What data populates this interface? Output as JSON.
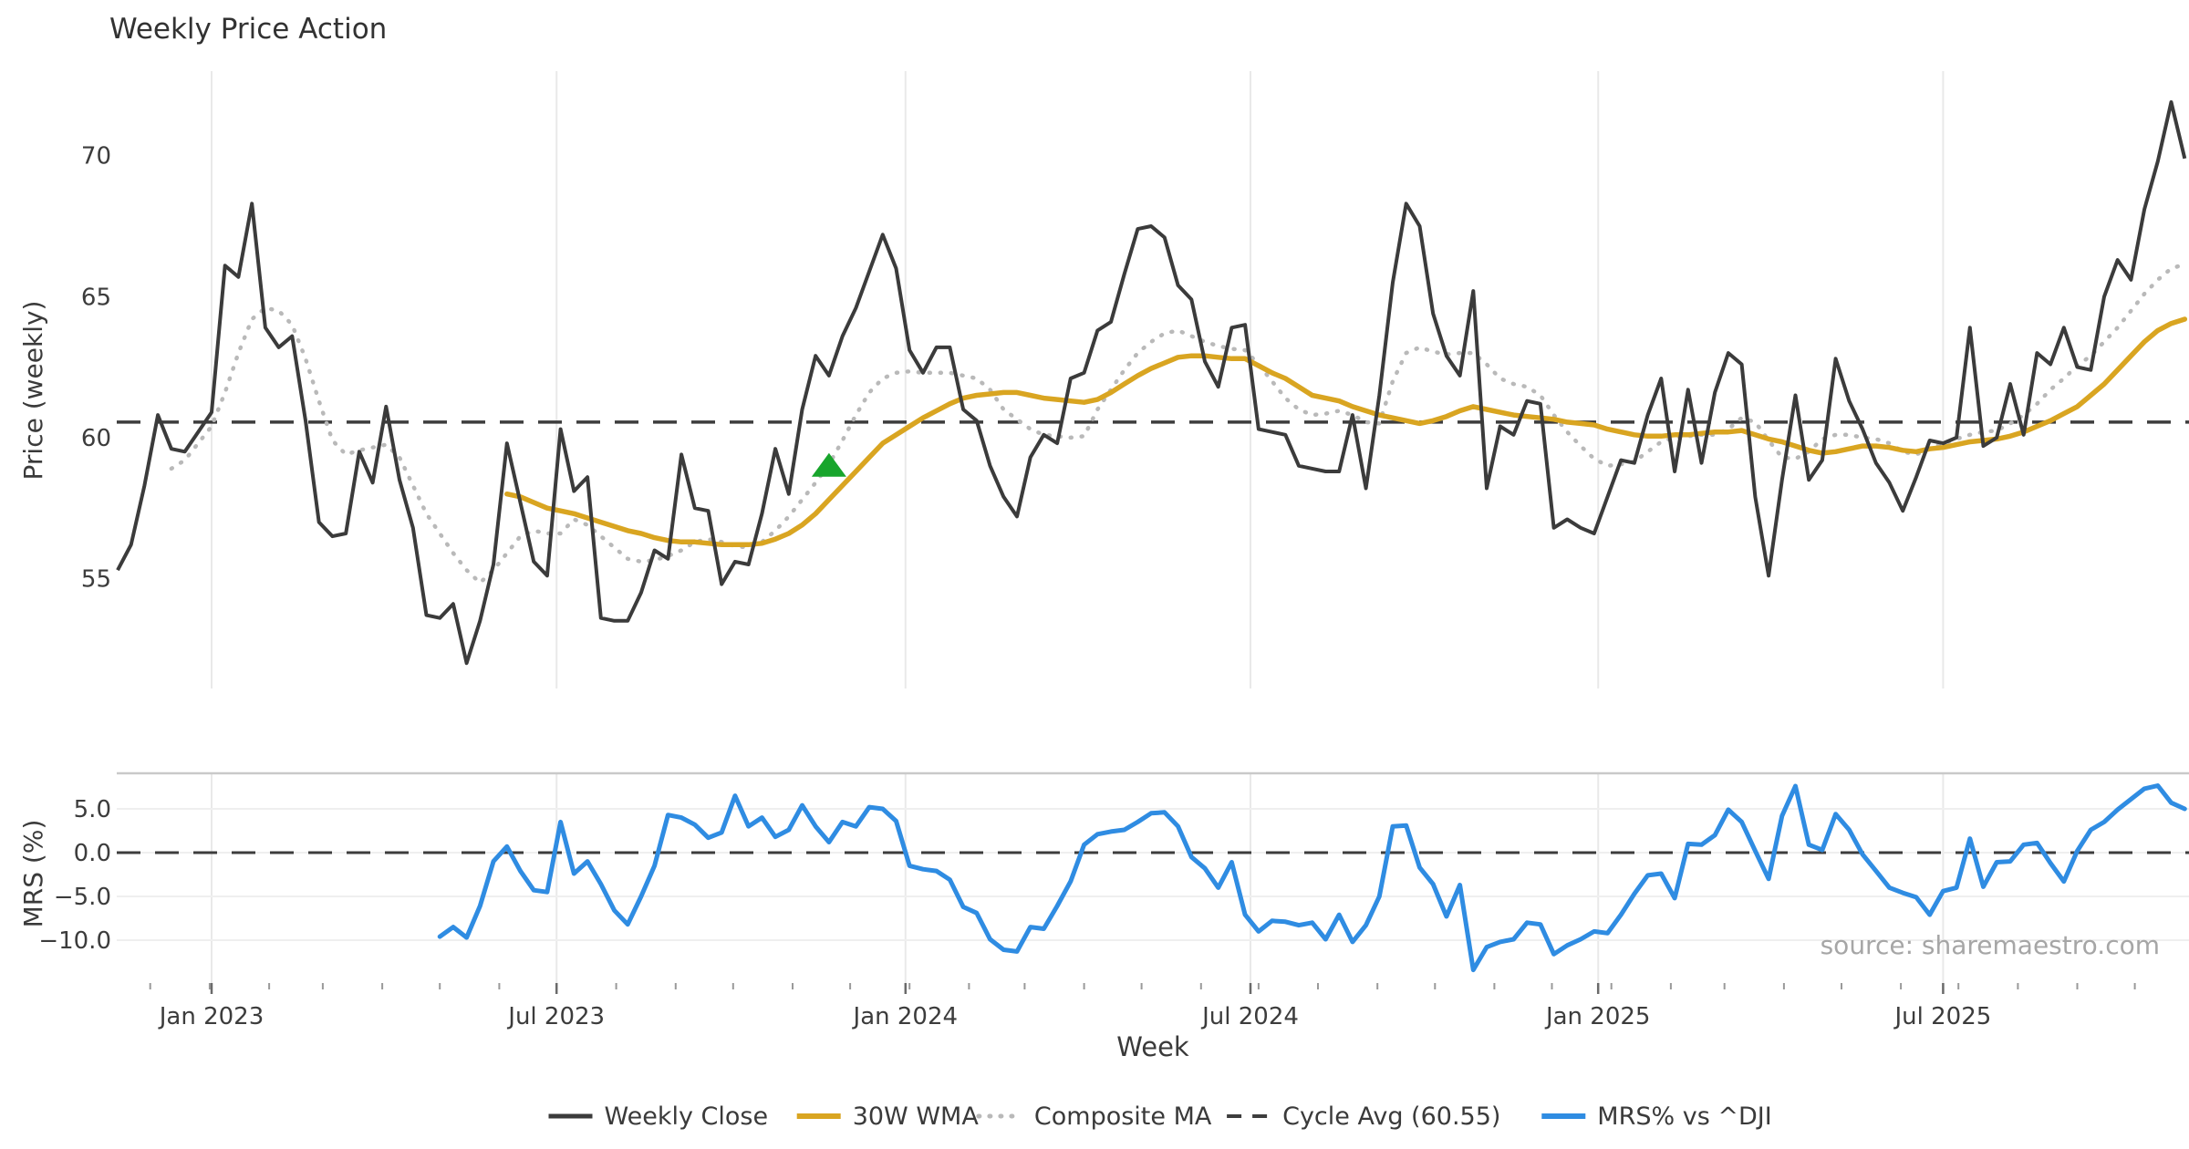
{
  "title": "Weekly Price Action",
  "source_note": "source: sharemaestro.com",
  "axes": {
    "top": {
      "ylabel": "Price (weekly)",
      "yticks": [
        "70",
        "65",
        "60",
        "55"
      ],
      "ytick_values": [
        70,
        65,
        60,
        55
      ],
      "ylim": [
        51.1,
        73.0
      ]
    },
    "bottom": {
      "ylabel": "MRS (%)",
      "yticks": [
        "5.0",
        "0.0",
        "−5.0",
        "−10.0"
      ],
      "ytick_values": [
        5,
        0,
        -5,
        -10
      ],
      "ylim": [
        -14.9,
        9.06
      ]
    },
    "x": {
      "label": "Week",
      "ticks": [
        {
          "label": "Jan 2023",
          "week_index": 7.0
        },
        {
          "label": "Jul 2023",
          "week_index": 32.7
        },
        {
          "label": "Jan 2024",
          "week_index": 58.7
        },
        {
          "label": "Jul 2024",
          "week_index": 84.4
        },
        {
          "label": "Jan 2025",
          "week_index": 110.3
        },
        {
          "label": "Jul 2025",
          "week_index": 136.0
        }
      ]
    }
  },
  "legend": {
    "items": [
      {
        "label": "Weekly Close",
        "style": "solid-dark"
      },
      {
        "label": "30W WMA",
        "style": "solid-gold"
      },
      {
        "label": "Composite MA",
        "style": "dotted-gray"
      },
      {
        "label": "Cycle Avg (60.55)",
        "style": "dashed-dark"
      },
      {
        "label": "MRS% vs ^DJI",
        "style": "solid-blue"
      }
    ]
  },
  "colors": {
    "close": "#3b3b3b",
    "wma": "#d9a521",
    "composite": "#b9b9b9",
    "cycle": "#3d3d3d",
    "mrs": "#2f8ce2",
    "grid": "#e9e9e9",
    "spine": "#c9c9c9",
    "marker": "#18a52c",
    "source": "#a6a6a6"
  },
  "marker": {
    "name": "buy-signal-triangle",
    "week_index": 53,
    "price": 59.0,
    "color": "#18a52c"
  },
  "chart_data": {
    "type": "line",
    "title": "Weekly Price Action",
    "xlabel": "Week",
    "x_start_date": "2022-11-14",
    "x_step_days": 7,
    "n_weeks": 155,
    "cycle_avg": 60.55,
    "panels": [
      {
        "name": "price",
        "ylabel": "Price (weekly)",
        "ylim": [
          51.1,
          73.0
        ],
        "legend_position": "bottom"
      },
      {
        "name": "mrs",
        "ylabel": "MRS (%)",
        "ylim": [
          -14.9,
          9.06
        ],
        "zero_line": 0.0
      }
    ],
    "series": [
      {
        "name": "Weekly Close",
        "panel": "price",
        "start_index": 0,
        "values": [
          55.3,
          56.2,
          58.3,
          60.8,
          59.6,
          59.5,
          60.2,
          60.9,
          66.1,
          65.7,
          68.3,
          63.9,
          63.2,
          63.6,
          60.6,
          57.0,
          56.5,
          56.6,
          59.5,
          58.4,
          61.1,
          58.5,
          56.8,
          53.7,
          53.6,
          54.1,
          52.0,
          53.5,
          55.5,
          59.8,
          57.7,
          55.6,
          55.1,
          60.3,
          58.1,
          58.6,
          53.6,
          53.5,
          53.5,
          54.5,
          56.0,
          55.7,
          59.4,
          57.5,
          57.4,
          54.8,
          55.6,
          55.5,
          57.3,
          59.6,
          58.0,
          61.0,
          62.9,
          62.2,
          63.6,
          64.6,
          65.9,
          67.2,
          66.0,
          63.1,
          62.3,
          63.2,
          63.2,
          61.0,
          60.6,
          59.0,
          57.9,
          57.2,
          59.3,
          60.1,
          59.8,
          62.1,
          62.3,
          63.8,
          64.1,
          65.8,
          67.4,
          67.5,
          67.1,
          65.4,
          64.9,
          62.7,
          61.8,
          63.9,
          64.0,
          60.3,
          60.2,
          60.1,
          59.0,
          58.9,
          58.8,
          58.8,
          60.8,
          58.2,
          61.5,
          65.5,
          68.3,
          67.5,
          64.4,
          62.9,
          62.2,
          65.2,
          58.2,
          60.4,
          60.1,
          61.3,
          61.2,
          56.8,
          57.1,
          56.8,
          56.6,
          57.9,
          59.2,
          59.1,
          60.8,
          62.1,
          58.8,
          61.7,
          59.1,
          61.6,
          63.0,
          62.6,
          57.9,
          55.1,
          58.5,
          61.5,
          58.5,
          59.2,
          62.8,
          61.3,
          60.3,
          59.1,
          58.4,
          57.4,
          58.6,
          59.9,
          59.8,
          60.0,
          63.9,
          59.7,
          60.0,
          61.9,
          60.1,
          63.0,
          62.6,
          63.9,
          62.5,
          62.4,
          65.0,
          66.3,
          65.6,
          68.1,
          69.8,
          71.9,
          69.9
        ]
      },
      {
        "name": "30W WMA",
        "panel": "price",
        "start_index": 29,
        "values": [
          58.0,
          57.9,
          57.7,
          57.5,
          57.4,
          57.3,
          57.15,
          57.0,
          56.85,
          56.7,
          56.6,
          56.45,
          56.35,
          56.3,
          56.3,
          56.25,
          56.2,
          56.2,
          56.2,
          56.25,
          56.4,
          56.6,
          56.9,
          57.3,
          57.8,
          58.3,
          58.8,
          59.3,
          59.8,
          60.1,
          60.4,
          60.7,
          60.95,
          61.2,
          61.4,
          61.5,
          61.55,
          61.6,
          61.6,
          61.5,
          61.4,
          61.35,
          61.3,
          61.25,
          61.35,
          61.6,
          61.9,
          62.2,
          62.45,
          62.65,
          62.85,
          62.9,
          62.9,
          62.85,
          62.8,
          62.8,
          62.55,
          62.3,
          62.1,
          61.8,
          61.5,
          61.4,
          61.3,
          61.1,
          60.95,
          60.8,
          60.7,
          60.6,
          60.5,
          60.6,
          60.75,
          60.95,
          61.1,
          61.0,
          60.9,
          60.8,
          60.75,
          60.7,
          60.65,
          60.55,
          60.5,
          60.45,
          60.3,
          60.2,
          60.1,
          60.05,
          60.05,
          60.1,
          60.1,
          60.15,
          60.2,
          60.2,
          60.25,
          60.1,
          59.95,
          59.85,
          59.7,
          59.55,
          59.45,
          59.5,
          59.6,
          59.7,
          59.7,
          59.65,
          59.55,
          59.5,
          59.6,
          59.65,
          59.75,
          59.85,
          59.9,
          59.95,
          60.05,
          60.2,
          60.4,
          60.6,
          60.85,
          61.1,
          61.5,
          61.9,
          62.4,
          62.9,
          63.4,
          63.8,
          64.05,
          64.2
        ]
      },
      {
        "name": "Composite MA",
        "panel": "price",
        "start_index": 4,
        "values": [
          58.9,
          59.2,
          59.8,
          60.4,
          61.6,
          63.0,
          64.2,
          64.6,
          64.5,
          64.0,
          62.8,
          61.3,
          59.9,
          59.4,
          59.55,
          59.65,
          59.75,
          59.3,
          58.3,
          57.3,
          56.6,
          55.9,
          55.3,
          54.85,
          55.3,
          55.9,
          56.5,
          56.7,
          56.6,
          56.6,
          57.1,
          56.9,
          56.5,
          56.1,
          55.7,
          55.6,
          55.65,
          55.8,
          56.0,
          56.3,
          56.4,
          56.3,
          56.15,
          56.1,
          56.3,
          56.7,
          57.2,
          57.8,
          58.4,
          59.05,
          59.9,
          60.8,
          61.6,
          62.1,
          62.3,
          62.35,
          62.3,
          62.3,
          62.3,
          62.2,
          62.1,
          61.7,
          61.0,
          60.65,
          60.3,
          60.1,
          60.05,
          60.0,
          60.05,
          61.0,
          61.7,
          62.4,
          63.0,
          63.4,
          63.7,
          63.8,
          63.6,
          63.4,
          63.25,
          63.15,
          63.1,
          62.6,
          62.0,
          61.4,
          61.0,
          60.8,
          60.85,
          60.95,
          60.8,
          60.55,
          60.5,
          62.0,
          63.0,
          63.2,
          63.05,
          62.95,
          63.0,
          63.0,
          62.6,
          62.1,
          61.9,
          61.8,
          61.5,
          60.8,
          60.2,
          59.7,
          59.25,
          59.0,
          59.05,
          59.15,
          59.5,
          59.85,
          60.0,
          60.05,
          60.1,
          60.1,
          60.3,
          60.7,
          60.55,
          59.9,
          59.3,
          59.25,
          59.5,
          59.95,
          60.1,
          60.1,
          60.0,
          59.95,
          59.8,
          59.5,
          59.4,
          59.6,
          59.8,
          59.95,
          60.1,
          60.2,
          60.25,
          60.5,
          60.8,
          61.2,
          61.7,
          62.1,
          62.55,
          62.9,
          63.4,
          63.9,
          64.5,
          65.1,
          65.6,
          66.0,
          66.15
        ]
      },
      {
        "name": "MRS% vs ^DJI",
        "panel": "mrs",
        "start_index": 24,
        "values": [
          -9.6,
          -8.5,
          -9.7,
          -6.1,
          -1.0,
          0.7,
          -2.1,
          -4.3,
          -4.5,
          3.5,
          -2.4,
          -1.0,
          -3.6,
          -6.6,
          -8.2,
          -5.0,
          -1.5,
          4.3,
          4.0,
          3.2,
          1.7,
          2.3,
          6.5,
          3.0,
          4.0,
          1.8,
          2.6,
          5.4,
          3.0,
          1.2,
          3.5,
          3.0,
          5.2,
          5.0,
          3.6,
          -1.5,
          -1.9,
          -2.1,
          -3.1,
          -6.2,
          -6.9,
          -9.9,
          -11.1,
          -11.3,
          -8.5,
          -8.7,
          -6.1,
          -3.3,
          0.9,
          2.1,
          2.4,
          2.6,
          3.5,
          4.5,
          4.6,
          3.0,
          -0.5,
          -1.8,
          -4.0,
          -1.1,
          -7.1,
          -9.0,
          -7.8,
          -7.9,
          -8.3,
          -8.0,
          -9.9,
          -7.1,
          -10.2,
          -8.3,
          -5.0,
          3.0,
          3.1,
          -1.7,
          -3.6,
          -7.3,
          -3.7,
          -13.4,
          -10.8,
          -10.2,
          -9.9,
          -8.0,
          -8.2,
          -11.6,
          -10.6,
          -9.9,
          -9.0,
          -9.2,
          -7.1,
          -4.7,
          -2.6,
          -2.4,
          -5.2,
          1.0,
          0.9,
          2.0,
          4.9,
          3.5,
          0.2,
          -3.0,
          4.2,
          7.6,
          0.9,
          0.3,
          4.4,
          2.6,
          -0.2,
          -2.1,
          -4.0,
          -4.6,
          -5.1,
          -7.1,
          -4.4,
          -4.0,
          1.6,
          -3.9,
          -1.1,
          -1.0,
          0.9,
          1.1,
          -1.2,
          -3.3,
          0.2,
          2.6,
          3.5,
          4.9,
          6.1,
          7.3,
          7.65,
          5.7,
          5.0
        ]
      }
    ]
  }
}
